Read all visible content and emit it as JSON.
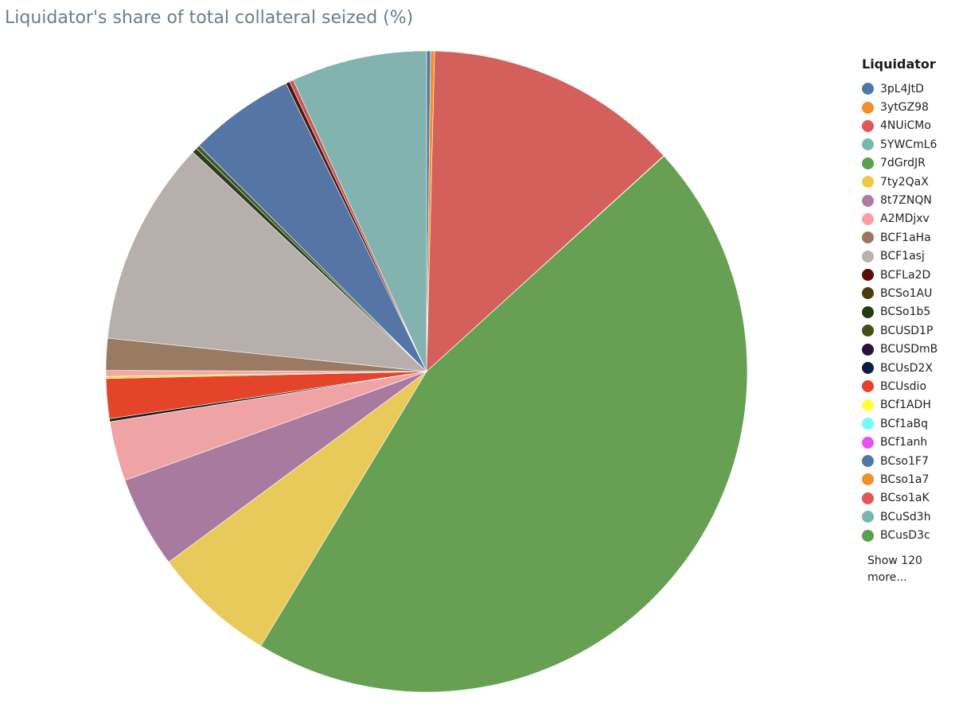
{
  "chart_data": {
    "type": "pie",
    "title": "Liquidator's share of total collateral seized (%)",
    "legend_title": "Liquidator",
    "legend_position": "right",
    "legend_more": "Show 120 more...",
    "slices": [
      {
        "name": "3pL4JtD",
        "value": 0.2,
        "color": "#4e79a7"
      },
      {
        "name": "3ytGZ98",
        "value": 0.2,
        "color": "#f28e2b"
      },
      {
        "name": "4NUiCMo",
        "value": 12.8,
        "color": "#d4605b"
      },
      {
        "name": "5YWCmL6",
        "value": 0.02,
        "color": "#82b3af"
      },
      {
        "name": "7dGrdJR",
        "value": 45.2,
        "color": "#67a052"
      },
      {
        "name": "7ty2QaX",
        "value": 6.2,
        "color": "#e8ca5b"
      },
      {
        "name": "8t7ZNQN",
        "value": 4.6,
        "color": "#a87a9f"
      },
      {
        "name": "A2MDjxv",
        "value": 3.0,
        "color": "#f0a3a5"
      },
      {
        "name": "BCF1aHa",
        "value": 0.15,
        "color": "#1f1f1f"
      },
      {
        "name": "BCF1asj",
        "value": 2.0,
        "color": "#e4452a"
      },
      {
        "name": "BCFLa2D",
        "value": 0.1,
        "color": "#f0e020"
      },
      {
        "name": "BCSo1AU",
        "value": 0.3,
        "color": "#f3a7a7"
      },
      {
        "name": "BCSo1b5",
        "value": 1.6,
        "color": "#9b7a62"
      },
      {
        "name": "BCUSD1P",
        "value": 10.3,
        "color": "#b7afab"
      },
      {
        "name": "BCUSDmB",
        "value": 0.25,
        "color": "#2a3d1c"
      },
      {
        "name": "BCUsD2X",
        "value": 0.2,
        "color": "#3f5a2c"
      },
      {
        "name": "BCUsdio",
        "value": 5.3,
        "color": "#5475a5"
      },
      {
        "name": "BCf1ADH",
        "value": 0.2,
        "color": "#4a1a12"
      },
      {
        "name": "BCf1aBq",
        "value": 0.2,
        "color": "#c45a55"
      },
      {
        "name": "BCf1anh",
        "value": 6.8,
        "color": "#82b3af"
      }
    ],
    "legend": [
      {
        "name": "3pL4JtD",
        "color": "#4e79a7"
      },
      {
        "name": "3ytGZ98",
        "color": "#f28e2b"
      },
      {
        "name": "4NUiCMo",
        "color": "#e15759"
      },
      {
        "name": "5YWCmL6",
        "color": "#76b7b2"
      },
      {
        "name": "7dGrdJR",
        "color": "#59a14f"
      },
      {
        "name": "7ty2QaX",
        "color": "#edc948"
      },
      {
        "name": "8t7ZNQN",
        "color": "#b07aa1"
      },
      {
        "name": "A2MDjxv",
        "color": "#ff9da7"
      },
      {
        "name": "BCF1aHa",
        "color": "#9c755f"
      },
      {
        "name": "BCF1asj",
        "color": "#bab0ac"
      },
      {
        "name": "BCFLa2D",
        "color": "#5a0f00"
      },
      {
        "name": "BCSo1AU",
        "color": "#4b3a0b"
      },
      {
        "name": "BCSo1b5",
        "color": "#233a13"
      },
      {
        "name": "BCUSD1P",
        "color": "#444f14"
      },
      {
        "name": "BCUSDmB",
        "color": "#2d0f3f"
      },
      {
        "name": "BCUsD2X",
        "color": "#0a1e4b"
      },
      {
        "name": "BCUsdio",
        "color": "#e8402a"
      },
      {
        "name": "BCf1ADH",
        "color": "#ffff40"
      },
      {
        "name": "BCf1aBq",
        "color": "#70fbff"
      },
      {
        "name": "BCf1anh",
        "color": "#e552f5"
      },
      {
        "name": "BCso1F7",
        "color": "#4e79a7"
      },
      {
        "name": "BCso1a7",
        "color": "#f28e2b"
      },
      {
        "name": "BCso1aK",
        "color": "#e15759"
      },
      {
        "name": "BCuSd3h",
        "color": "#76b7b2"
      },
      {
        "name": "BCusD3c",
        "color": "#59a14f"
      }
    ]
  }
}
